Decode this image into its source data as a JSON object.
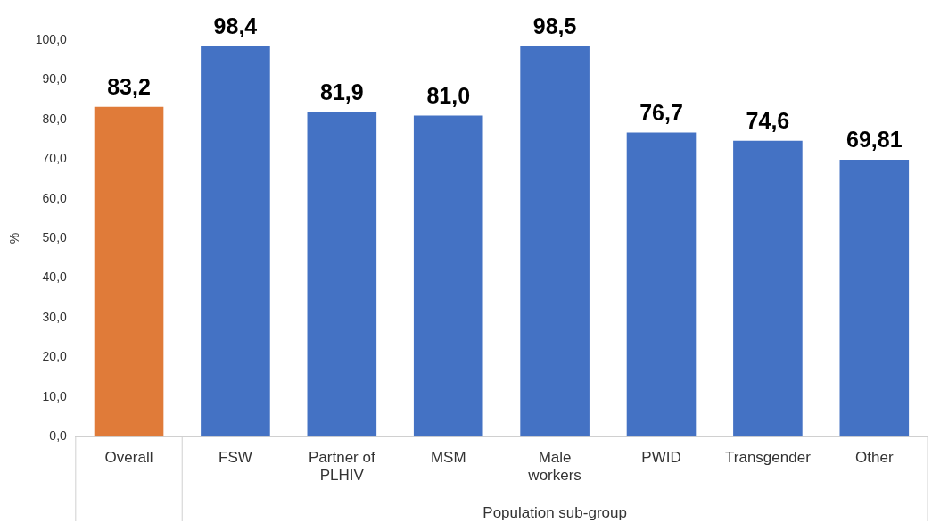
{
  "chart_data": {
    "type": "bar",
    "xlabel": "Population sub-group",
    "ylabel": "%",
    "categories": [
      "Overall",
      "FSW",
      "Partner of PLHIV",
      "MSM",
      "Male workers",
      "PWID",
      "Transgender",
      "Other"
    ],
    "values": [
      83.2,
      98.4,
      81.9,
      81.0,
      98.5,
      76.7,
      74.6,
      69.81
    ],
    "colors": [
      "#e07b39",
      "#4472c4",
      "#4472c4",
      "#4472c4",
      "#4472c4",
      "#4472c4",
      "#4472c4",
      "#4472c4"
    ],
    "value_labels": [
      "83,2",
      "98,4",
      "81,9",
      "81,0",
      "98,5",
      "76,7",
      "74,6",
      "69,81"
    ],
    "ylim": [
      0,
      100
    ],
    "yticks": [
      {
        "value": 0,
        "label": "0,0"
      },
      {
        "value": 10,
        "label": "10,0"
      },
      {
        "value": 20,
        "label": "20,0"
      },
      {
        "value": 30,
        "label": "30,0"
      },
      {
        "value": 40,
        "label": "40,0"
      },
      {
        "value": 50,
        "label": "50,0"
      },
      {
        "value": 60,
        "label": "60,0"
      },
      {
        "value": 70,
        "label": "70,0"
      },
      {
        "value": 80,
        "label": "80,0"
      },
      {
        "value": 90,
        "label": "90,0"
      },
      {
        "value": 100,
        "label": "100,0"
      }
    ],
    "grid": false,
    "legend": false
  }
}
